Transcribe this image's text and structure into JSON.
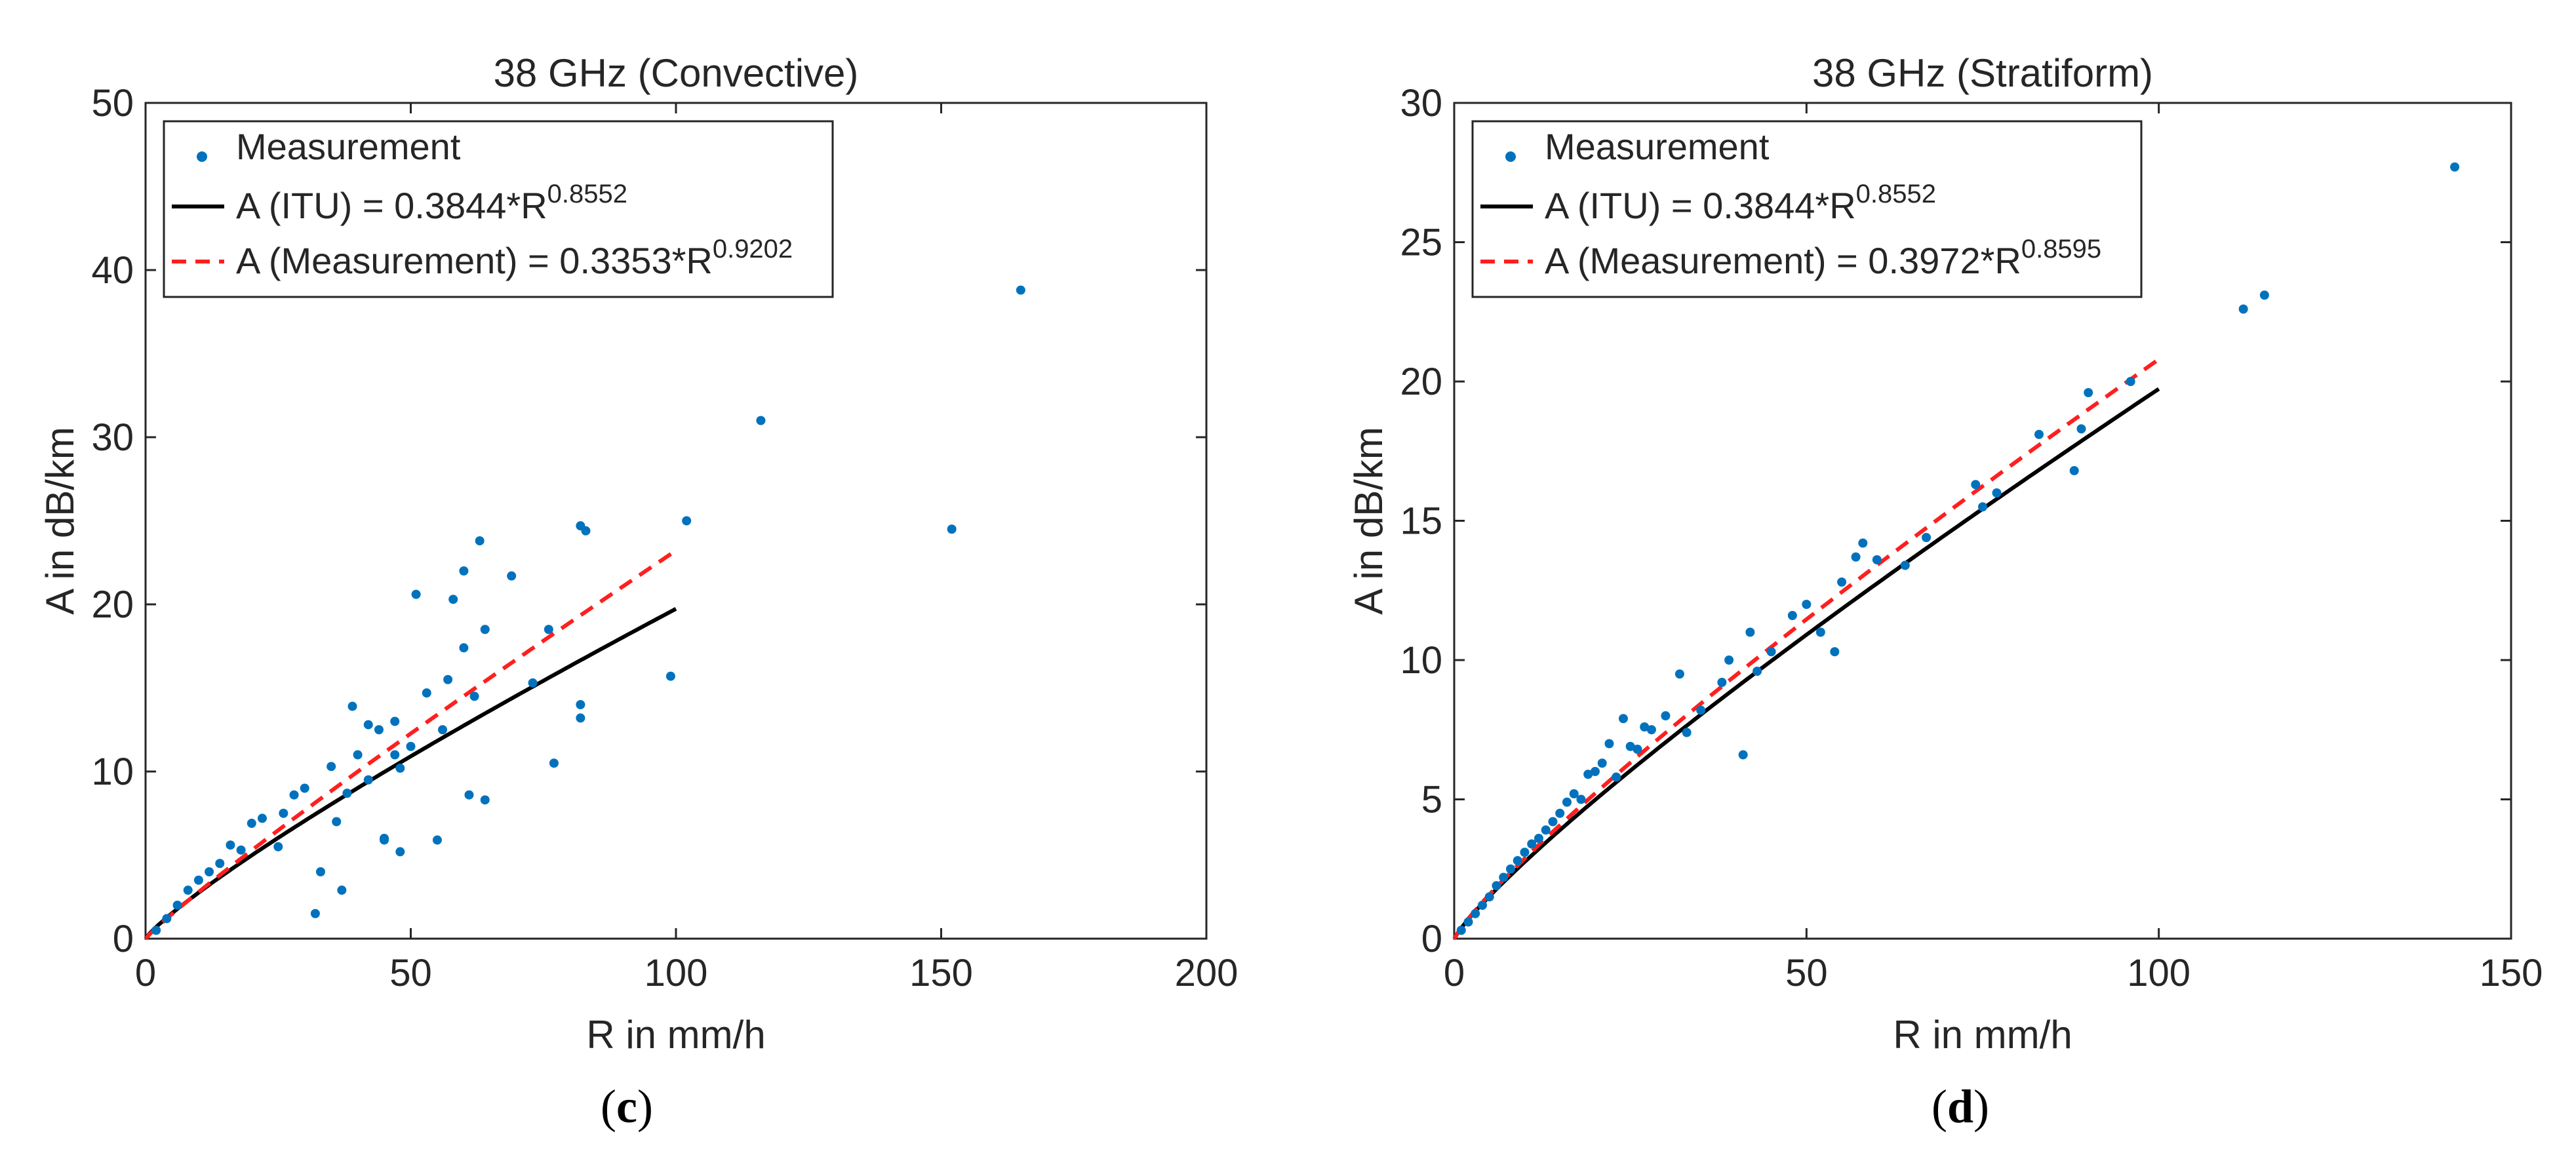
{
  "colors": {
    "measurement": "#0072BD",
    "itu": "#000000",
    "fit": "#FF1F1F",
    "axis": "#262626"
  },
  "chart_data": [
    {
      "type": "scatter",
      "panel_label": "c",
      "title": "38 GHz (Convective)",
      "xlabel": "R in mm/h",
      "ylabel": "A in dB/km",
      "xlim": [
        0,
        200
      ],
      "ylim": [
        0,
        50
      ],
      "xticks": [
        0,
        50,
        100,
        150,
        200
      ],
      "yticks": [
        0,
        10,
        20,
        30,
        40,
        50
      ],
      "legend": {
        "position": "top-left",
        "entries": [
          {
            "label": "Measurement"
          },
          {
            "label": "A (ITU) = 0.3844*R",
            "exponent": "0.8552"
          },
          {
            "label": "A (Measurement) = 0.3353*R",
            "exponent": "0.9202"
          }
        ]
      },
      "series": [
        {
          "name": "Measurement",
          "kind": "points",
          "x": [
            165,
            116,
            152,
            102,
            82,
            83,
            63,
            60,
            51,
            58,
            64,
            69,
            76,
            99,
            82,
            82,
            77,
            73,
            62,
            64,
            55,
            45,
            39,
            32,
            37,
            50,
            47,
            44,
            35,
            60,
            42,
            47,
            48,
            53,
            57,
            40,
            38,
            36,
            28,
            26,
            25,
            22,
            20,
            18,
            16,
            14,
            12,
            10,
            8,
            6,
            4,
            2,
            30,
            33,
            45,
            42,
            48,
            56,
            61
          ],
          "y": [
            38.8,
            31.0,
            24.5,
            25.0,
            24.7,
            24.4,
            23.8,
            22.0,
            20.6,
            20.3,
            18.5,
            21.7,
            18.5,
            15.7,
            14.0,
            13.2,
            10.5,
            15.3,
            14.5,
            8.3,
            5.9,
            5.9,
            13.9,
            1.5,
            2.9,
            11.5,
            11.0,
            12.5,
            10.3,
            17.4,
            9.5,
            13.0,
            5.2,
            14.7,
            15.5,
            11.0,
            8.7,
            7.0,
            8.6,
            7.5,
            5.5,
            7.2,
            6.9,
            5.3,
            5.6,
            4.5,
            4.0,
            3.5,
            2.9,
            2.0,
            1.2,
            0.5,
            9.0,
            4.0,
            6.0,
            12.8,
            10.2,
            12.5,
            8.6
          ]
        },
        {
          "name": "A (ITU) = 0.3844*R^0.8552",
          "kind": "power_line",
          "coef": 0.3844,
          "exp": 0.8552,
          "xrange": [
            0,
            100
          ]
        },
        {
          "name": "A (Measurement) = 0.3353*R^0.9202",
          "kind": "power_line",
          "coef": 0.3353,
          "exp": 0.9202,
          "xrange": [
            0,
            100
          ]
        }
      ]
    },
    {
      "type": "scatter",
      "panel_label": "d",
      "title": "38 GHz (Stratiform)",
      "xlabel": "R in mm/h",
      "ylabel": "A in dB/km",
      "xlim": [
        0,
        150
      ],
      "ylim": [
        0,
        30
      ],
      "xticks": [
        0,
        50,
        100,
        150
      ],
      "yticks": [
        0,
        5,
        10,
        15,
        20,
        25,
        30
      ],
      "legend": {
        "position": "top-left",
        "entries": [
          {
            "label": "Measurement"
          },
          {
            "label": "A (ITU) = 0.3844*R",
            "exponent": "0.8552"
          },
          {
            "label": "A (Measurement) = 0.3972*R",
            "exponent": "0.8595"
          }
        ]
      },
      "series": [
        {
          "name": "Measurement",
          "kind": "points",
          "x": [
            142,
            115,
            112,
            96,
            90,
            89,
            88,
            83,
            77,
            74,
            75,
            67,
            64,
            60,
            58,
            57,
            55,
            54,
            52,
            50,
            48,
            45,
            43,
            42,
            41,
            39,
            38,
            35,
            33,
            32,
            30,
            28,
            27,
            26,
            25,
            24,
            23,
            22,
            21,
            20,
            19,
            18,
            17,
            16,
            15,
            14,
            13,
            12,
            11,
            10,
            9,
            8,
            7,
            6,
            5,
            4,
            3,
            2,
            1
          ],
          "y": [
            27.7,
            23.1,
            22.6,
            20.0,
            19.6,
            18.3,
            16.8,
            18.1,
            16.0,
            16.3,
            15.5,
            14.4,
            13.4,
            13.6,
            14.2,
            13.7,
            12.8,
            10.3,
            11.0,
            12.0,
            11.6,
            10.3,
            9.6,
            11.0,
            6.6,
            10.0,
            9.2,
            8.2,
            7.4,
            9.5,
            8.0,
            7.5,
            7.6,
            6.8,
            6.9,
            7.9,
            5.8,
            7.0,
            6.3,
            6.0,
            5.9,
            5.0,
            5.2,
            4.9,
            4.5,
            4.2,
            3.9,
            3.6,
            3.4,
            3.1,
            2.8,
            2.5,
            2.2,
            1.9,
            1.5,
            1.2,
            0.9,
            0.6,
            0.3
          ]
        },
        {
          "name": "A (ITU) = 0.3844*R^0.8552",
          "kind": "power_line",
          "coef": 0.3844,
          "exp": 0.8552,
          "xrange": [
            0,
            100
          ]
        },
        {
          "name": "A (Measurement) = 0.3972*R^0.8595",
          "kind": "power_line",
          "coef": 0.3972,
          "exp": 0.8595,
          "xrange": [
            0,
            100
          ]
        }
      ]
    }
  ]
}
